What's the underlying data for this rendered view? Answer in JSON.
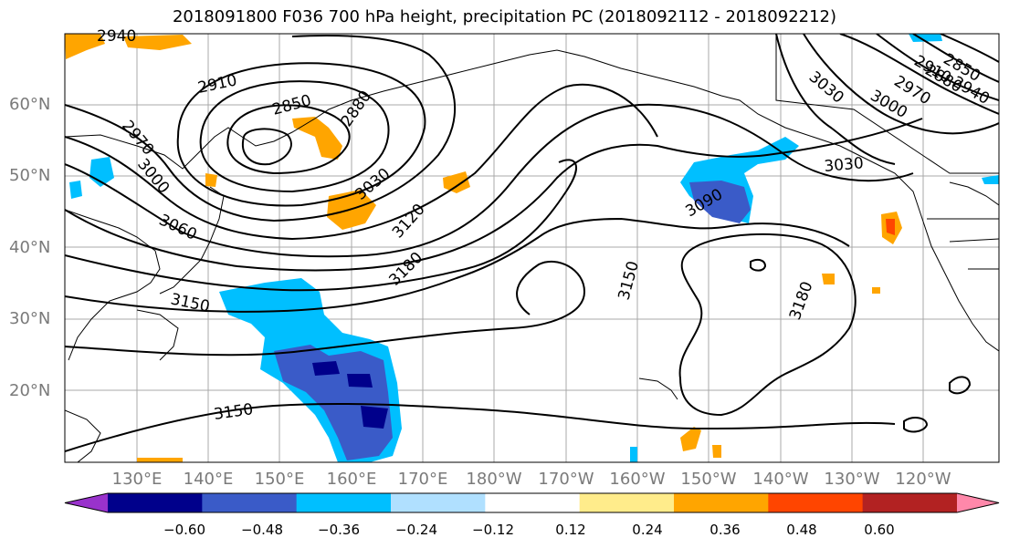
{
  "title": "2018091800 F036 700 hPa height, precipitation PC (2018092112 - 2018092212)",
  "lat_labels": [
    "60°N",
    "50°N",
    "40°N",
    "30°N",
    "20°N"
  ],
  "lon_labels": [
    "130°E",
    "140°E",
    "150°E",
    "160°E",
    "170°E",
    "180°W",
    "170°W",
    "160°W",
    "150°W",
    "140°W",
    "130°W",
    "120°W"
  ],
  "contour_labels": [
    "2940",
    "2910",
    "2850",
    "2880",
    "2970",
    "3000",
    "3060",
    "3030",
    "3120",
    "3180",
    "3150",
    "3150",
    "3090",
    "3150",
    "3180",
    "3030",
    "3000",
    "2970",
    "3030",
    "2850",
    "2880",
    "2910",
    "2940"
  ],
  "colorbar": {
    "colors": [
      "#9932CC",
      "#00008B",
      "#3A5BC8",
      "#00BFFF",
      "#B0E0FF",
      "#FFFFFF",
      "#FFEC8B",
      "#FFA500",
      "#FF4500",
      "#B22222",
      "#FF88AA"
    ],
    "tick_labels": [
      "−0.60",
      "−0.48",
      "−0.36",
      "−0.24",
      "−0.12",
      "0.12",
      "0.24",
      "0.36",
      "0.48",
      "0.60"
    ]
  }
}
